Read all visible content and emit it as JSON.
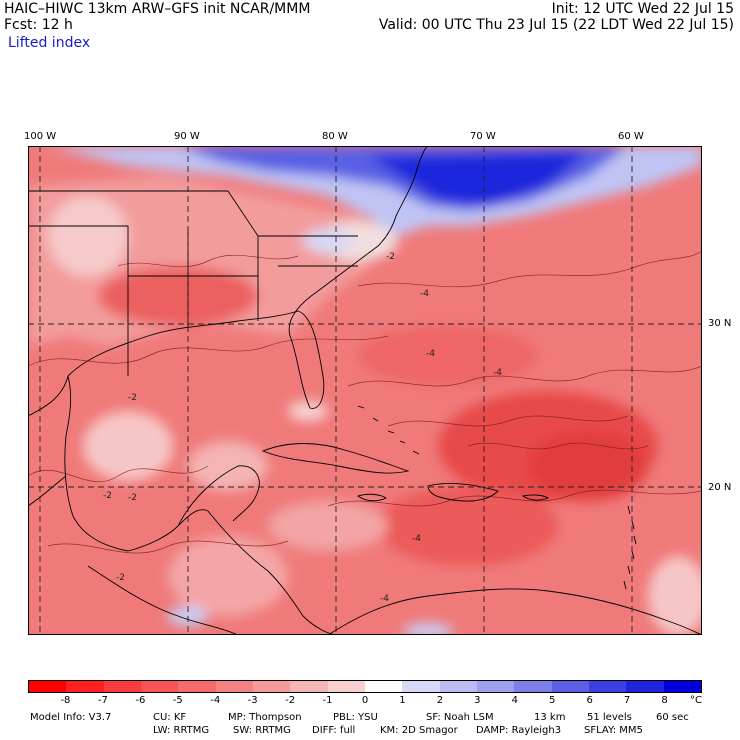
{
  "header": {
    "title_left": "HAIC–HIWC 13km ARW–GFS init    NCAR/MMM",
    "init": "Init: 12 UTC Wed 22 Jul 15",
    "fcst": "Fcst:    12 h",
    "valid": "Valid: 00 UTC Thu 23 Jul 15 (22 LDT Wed 22 Jul 15)",
    "field": "Lifted index"
  },
  "map": {
    "longitude_labels": [
      "100 W",
      "90 W",
      "80 W",
      "70 W",
      "60 W"
    ],
    "latitude_labels": [
      "30 N",
      "20 N"
    ],
    "contour_labels": [
      "-2",
      "-2",
      "-2",
      "-2",
      "-2",
      "-4",
      "-4",
      "-4",
      "-4",
      "-4"
    ],
    "colors": {
      "ocean_base": "#f07a7a",
      "strong_negative": "#e84040",
      "positive_blue": "#1e2ee0",
      "light_blue": "#c8ccf4",
      "land_pink": "#f4a8a8",
      "grid_line": "#222222"
    }
  },
  "colorbar": {
    "ticks": [
      "-8",
      "-7",
      "-6",
      "-5",
      "-4",
      "-3",
      "-2",
      "-1",
      "0",
      "1",
      "2",
      "3",
      "4",
      "5",
      "6",
      "7",
      "8"
    ],
    "unit": "°C",
    "colors": [
      "#ff0000",
      "#ff2020",
      "#fb3c3c",
      "#f75555",
      "#f56a6a",
      "#f38282",
      "#f49a9a",
      "#f6b5b5",
      "#f9d0d0",
      "#ffffff",
      "#d8d8f8",
      "#bcbcf2",
      "#9ea0ee",
      "#7c80e8",
      "#5c60e4",
      "#3c40e0",
      "#2024dc",
      "#0000dd"
    ]
  },
  "footer": {
    "line1": [
      "Model Info: V3.7",
      "CU: KF",
      "MP: Thompson",
      "PBL: YSU",
      "SF: Noah LSM",
      "13 km",
      "51 levels",
      "60 sec"
    ],
    "line2": [
      "LW: RRTMG",
      "SW: RRTMG",
      "DIFF: full",
      "KM: 2D Smagor",
      "DAMP: Rayleigh3",
      "SFLAY: MM5"
    ]
  }
}
